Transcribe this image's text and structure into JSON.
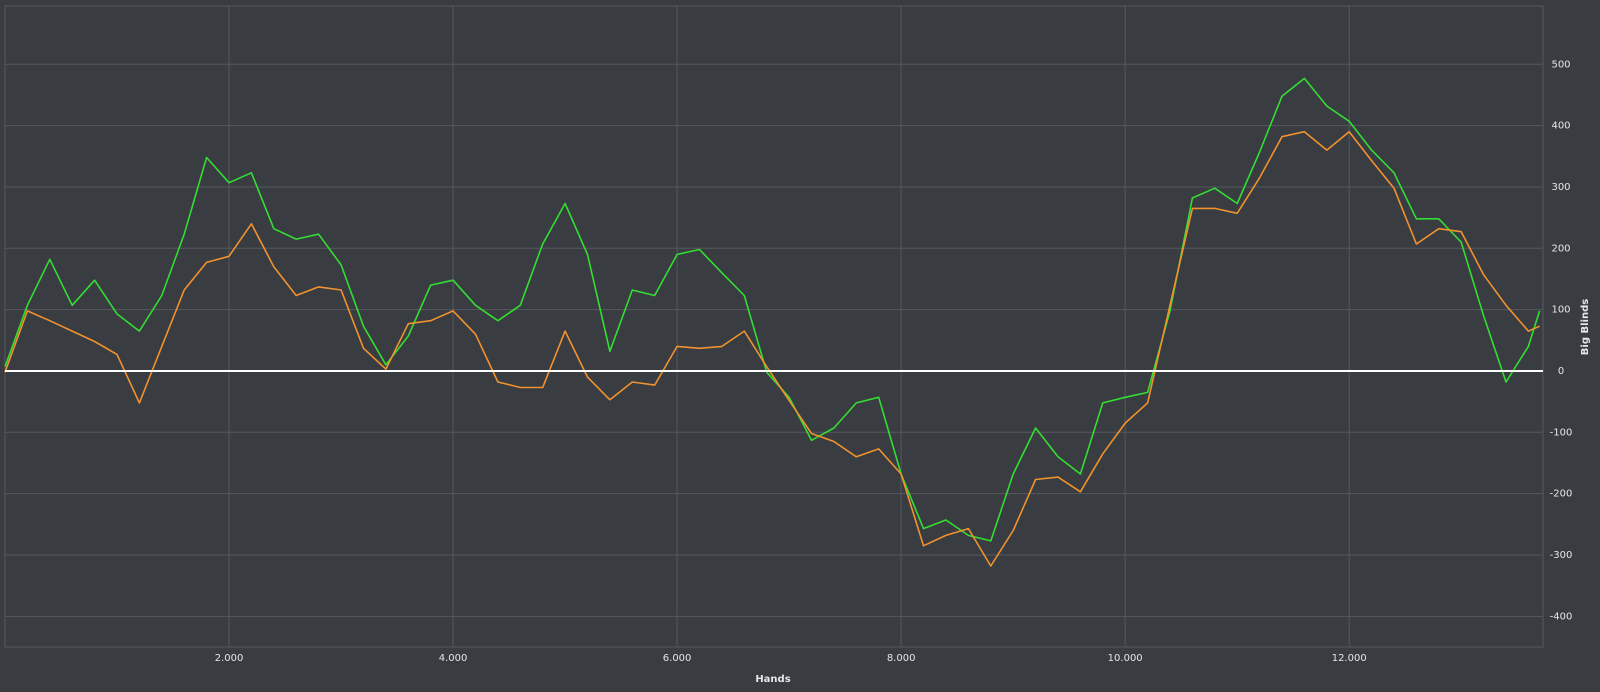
{
  "chart_data": {
    "type": "line",
    "x_label": "Hands",
    "y_label": "Big Blinds",
    "x": [
      0,
      200,
      400,
      600,
      800,
      1000,
      1200,
      1400,
      1600,
      1800,
      2000,
      2200,
      2400,
      2600,
      2800,
      3000,
      3200,
      3400,
      3600,
      3800,
      4000,
      4200,
      4400,
      4600,
      4800,
      5000,
      5200,
      5400,
      5600,
      5800,
      6000,
      6200,
      6400,
      6600,
      6800,
      7000,
      7200,
      7400,
      7600,
      7800,
      8000,
      8200,
      8400,
      8600,
      8800,
      9000,
      9200,
      9400,
      9600,
      9800,
      10000,
      10200,
      10400,
      10600,
      10800,
      11000,
      11200,
      11400,
      11600,
      11800,
      12000,
      12200,
      12400,
      12600,
      12800,
      13000,
      13200,
      13400,
      13600,
      13700
    ],
    "series": [
      {
        "name": null,
        "color": "#33dd33",
        "values": [
          7,
          107,
          182,
          107,
          148,
          93,
          65,
          123,
          223,
          348,
          307,
          323,
          232,
          215,
          223,
          173,
          73,
          10,
          57,
          140,
          148,
          107,
          82,
          107,
          207,
          273,
          190,
          32,
          132,
          123,
          190,
          198,
          160,
          123,
          -2,
          -43,
          -113,
          -93,
          -52,
          -43,
          -168,
          -257,
          -243,
          -268,
          -277,
          -168,
          -93,
          -140,
          -168,
          -52,
          -43,
          -35,
          98,
          282,
          298,
          273,
          357,
          448,
          477,
          432,
          407,
          360,
          323,
          248,
          248,
          210,
          90,
          -18,
          40,
          98
        ]
      },
      {
        "name": null,
        "color": "#f0922e",
        "values": [
          -2,
          98,
          82,
          65,
          48,
          27,
          -52,
          40,
          132,
          177,
          187,
          240,
          170,
          123,
          137,
          132,
          37,
          3,
          77,
          82,
          98,
          60,
          -18,
          -27,
          -27,
          65,
          -10,
          -47,
          -18,
          -23,
          40,
          37,
          40,
          65,
          7,
          -48,
          -102,
          -115,
          -140,
          -127,
          -168,
          -285,
          -268,
          -257,
          -318,
          -260,
          -177,
          -173,
          -197,
          -135,
          -85,
          -52,
          107,
          265,
          265,
          257,
          315,
          382,
          390,
          360,
          390,
          343,
          298,
          207,
          232,
          227,
          157,
          107,
          65,
          73
        ]
      }
    ],
    "xlim": [
      0,
      13730
    ],
    "xticks": [
      {
        "value": 2000,
        "label": "2.000"
      },
      {
        "value": 4000,
        "label": "4.000"
      },
      {
        "value": 6000,
        "label": "6.000"
      },
      {
        "value": 8000,
        "label": "8.000"
      },
      {
        "value": 10000,
        "label": "10.000"
      },
      {
        "value": 12000,
        "label": "12.000"
      }
    ],
    "ylim": [
      -450,
      595
    ],
    "yticks": [
      -400,
      -300,
      -200,
      -100,
      0,
      100,
      200,
      300,
      400,
      500
    ],
    "grid": true,
    "zero_line_color": "#ffffff"
  }
}
